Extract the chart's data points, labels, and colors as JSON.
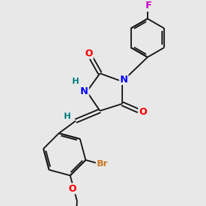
{
  "background_color": "#e8e8e8",
  "atom_colors": {
    "N": "#0000ff",
    "O": "#ff0000",
    "Br": "#cc7722",
    "F": "#cc00cc",
    "H_label": "#008080",
    "C": "#000000"
  },
  "bond_color": "#1a1a1a",
  "bond_width": 1.5,
  "font_size_atom": 10,
  "figsize": [
    3.0,
    3.0
  ],
  "dpi": 100
}
